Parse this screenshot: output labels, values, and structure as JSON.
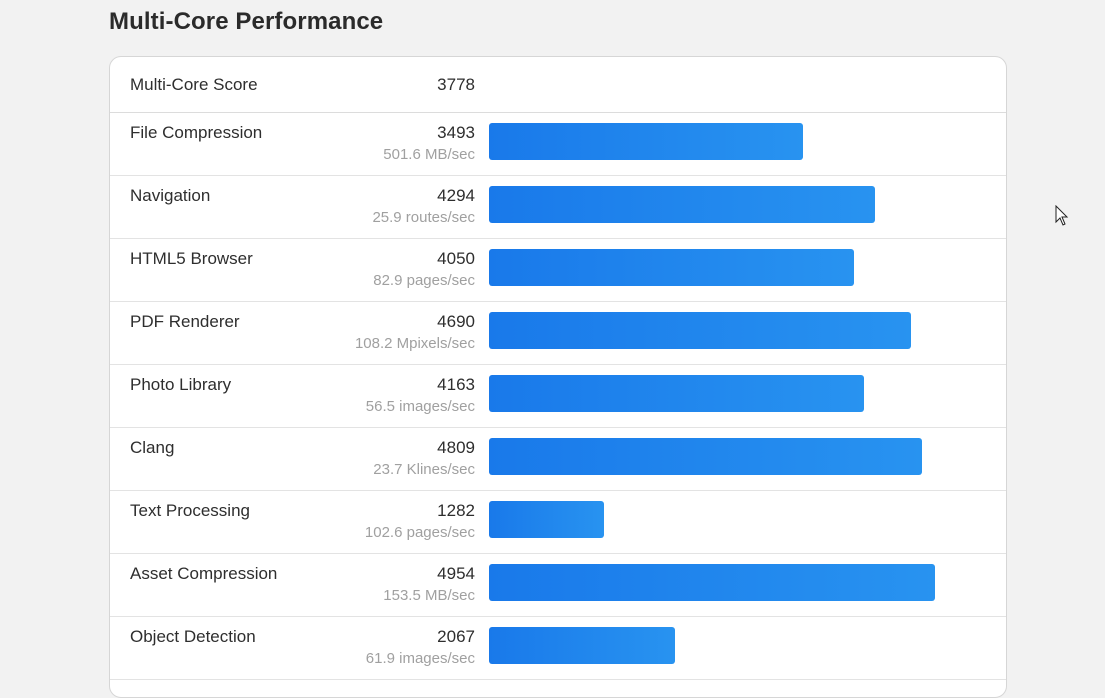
{
  "section": {
    "title": "Multi-Core Performance"
  },
  "overall": {
    "label": "Multi-Core Score",
    "score": "3778"
  },
  "scale_max": 5400,
  "benchmarks": [
    {
      "name": "File Compression",
      "score": "3493",
      "unit": "501.6 MB/sec",
      "value": 3493
    },
    {
      "name": "Navigation",
      "score": "4294",
      "unit": "25.9 routes/sec",
      "value": 4294
    },
    {
      "name": "HTML5 Browser",
      "score": "4050",
      "unit": "82.9 pages/sec",
      "value": 4050
    },
    {
      "name": "PDF Renderer",
      "score": "4690",
      "unit": "108.2 Mpixels/sec",
      "value": 4690
    },
    {
      "name": "Photo Library",
      "score": "4163",
      "unit": "56.5 images/sec",
      "value": 4163
    },
    {
      "name": "Clang",
      "score": "4809",
      "unit": "23.7 Klines/sec",
      "value": 4809
    },
    {
      "name": "Text Processing",
      "score": "1282",
      "unit": "102.6 pages/sec",
      "value": 1282
    },
    {
      "name": "Asset Compression",
      "score": "4954",
      "unit": "153.5 MB/sec",
      "value": 4954
    },
    {
      "name": "Object Detection",
      "score": "2067",
      "unit": "61.9 images/sec",
      "value": 2067
    }
  ],
  "colors": {
    "bar_start": "#1979ea",
    "bar_end": "#2893f0"
  },
  "icons": {
    "cursor": "mouse-pointer-icon"
  }
}
